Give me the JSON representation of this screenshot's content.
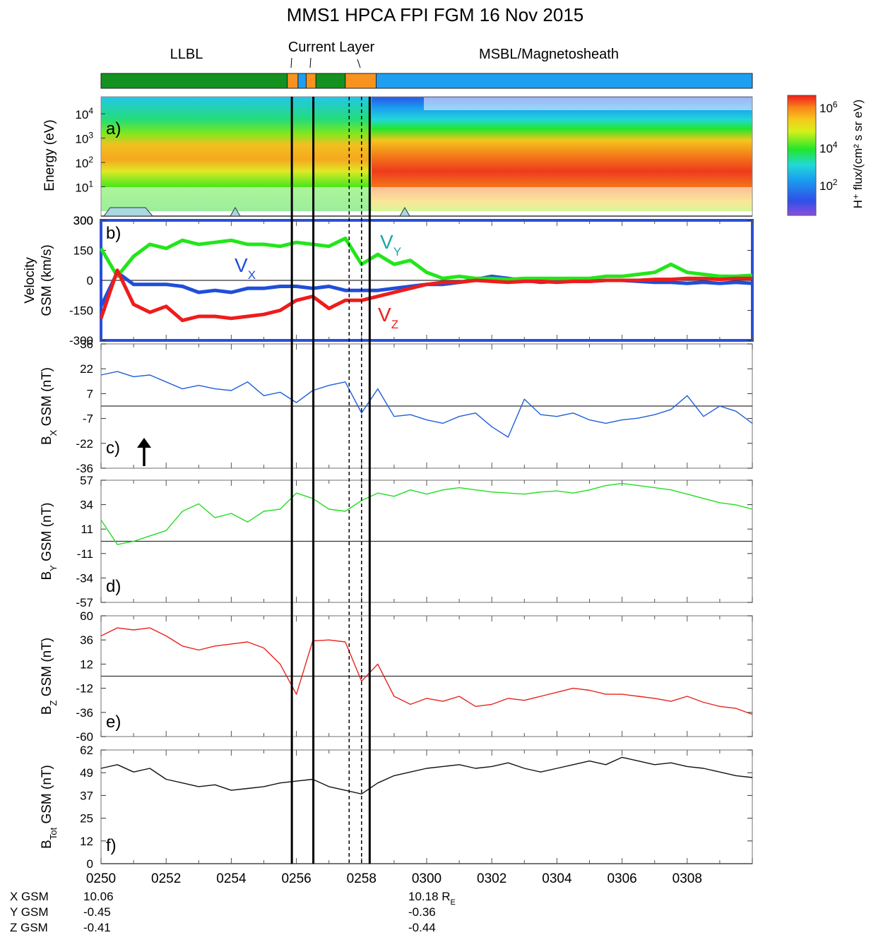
{
  "title": "MMS1 HPCA FPI FGM 16 Nov 2015",
  "regions": {
    "llbl": "LLBL",
    "current_layer": "Current Layer",
    "msbl": "MSBL/Magnetosheath"
  },
  "colors": {
    "llbl": "#13921f",
    "current_layer": "#f7931e",
    "msbl": "#1f9ff0",
    "vx": "#1f4fd8",
    "vy": "#22e61a",
    "vz": "#ee1c1c",
    "bx": "#1f5fd8",
    "by": "#22dd22",
    "bz": "#e8231d",
    "btot": "#111111",
    "velocity_frame": "#2a4fd8"
  },
  "colorbar": {
    "label": "H⁺ flux/(cm² s sr eV)",
    "ticks": [
      {
        "base": "10",
        "exp": "6"
      },
      {
        "base": "10",
        "exp": "4"
      },
      {
        "base": "10",
        "exp": "2"
      }
    ]
  },
  "x_axis": {
    "ticks": [
      "0250",
      "0252",
      "0254",
      "0256",
      "0258",
      "0300",
      "0302",
      "0304",
      "0306",
      "0308"
    ],
    "range_minutes": [
      0,
      20
    ]
  },
  "ephemeris": {
    "labels": [
      "X GSM",
      "Y GSM",
      "Z GSM"
    ],
    "start": [
      "10.06",
      "-0.45",
      "-0.41"
    ],
    "end": [
      "10.18 R",
      "-0.36",
      "-0.44"
    ],
    "end_unit_sub": "E"
  },
  "boundaries": {
    "solid": [
      5.86,
      6.52,
      8.25
    ],
    "dashed": [
      7.62,
      8.0
    ]
  },
  "bar_segments": [
    {
      "region": "llbl",
      "start": 0,
      "end": 5.72
    },
    {
      "region": "current_layer",
      "start": 5.72,
      "end": 6.05
    },
    {
      "region": "msbl",
      "start": 6.05,
      "end": 6.3
    },
    {
      "region": "current_layer",
      "start": 6.3,
      "end": 6.6
    },
    {
      "region": "llbl",
      "start": 6.6,
      "end": 7.5
    },
    {
      "region": "current_layer",
      "start": 7.5,
      "end": 8.45
    },
    {
      "region": "msbl",
      "start": 8.45,
      "end": 20
    }
  ],
  "chart_data": [
    {
      "panel": "a)",
      "type": "heatmap",
      "ylabel": "Energy (eV)",
      "yscale": "log",
      "ylim": [
        1,
        50000
      ],
      "yticks": [
        {
          "base": "10",
          "exp": "4"
        },
        {
          "base": "10",
          "exp": "3"
        },
        {
          "base": "10",
          "exp": "2"
        },
        {
          "base": "10",
          "exp": "1"
        }
      ],
      "extra_label": "300",
      "zlim": [
        10,
        3000000
      ]
    },
    {
      "panel": "b)",
      "type": "line",
      "ylabel": "Velocity GSM (km/s)",
      "ylim": [
        -300,
        300
      ],
      "yticks": [
        "300",
        "150",
        "0",
        "-150",
        "-300"
      ],
      "x_minutes": [
        0,
        0.5,
        1,
        1.5,
        2,
        2.5,
        3,
        3.5,
        4,
        4.5,
        5,
        5.5,
        6,
        6.5,
        7,
        7.5,
        8,
        8.5,
        9,
        9.5,
        10,
        10.5,
        11,
        11.5,
        12,
        12.5,
        13,
        13.5,
        14,
        14.5,
        15,
        15.5,
        16,
        16.5,
        17,
        17.5,
        18,
        18.5,
        19,
        19.5,
        20
      ],
      "series": [
        {
          "name": "V",
          "sub": "X",
          "values": [
            -130,
            40,
            -20,
            -20,
            -20,
            -30,
            -60,
            -50,
            -60,
            -40,
            -40,
            -30,
            -30,
            -40,
            -30,
            -50,
            -50,
            -50,
            -40,
            -30,
            -20,
            -20,
            -10,
            5,
            20,
            10,
            0,
            -10,
            -5,
            -5,
            -5,
            0,
            0,
            -5,
            -10,
            -10,
            -15,
            -10,
            -15,
            -10,
            -15
          ]
        },
        {
          "name": "V",
          "sub": "Y",
          "values": [
            160,
            20,
            120,
            180,
            160,
            200,
            180,
            190,
            200,
            180,
            180,
            170,
            190,
            180,
            170,
            210,
            80,
            130,
            80,
            100,
            40,
            10,
            20,
            10,
            10,
            5,
            10,
            10,
            10,
            10,
            10,
            20,
            20,
            30,
            40,
            80,
            40,
            30,
            20,
            20,
            25
          ]
        },
        {
          "name": "V",
          "sub": "Z",
          "values": [
            -190,
            50,
            -120,
            -160,
            -130,
            -200,
            -180,
            -180,
            -190,
            -180,
            -170,
            -150,
            -100,
            -80,
            -140,
            -100,
            -100,
            -80,
            -60,
            -40,
            -20,
            -10,
            -10,
            0,
            -5,
            -10,
            -5,
            -5,
            -10,
            -5,
            -5,
            0,
            0,
            0,
            5,
            5,
            10,
            10,
            5,
            10,
            10
          ]
        }
      ]
    },
    {
      "panel": "c)",
      "type": "line",
      "ylabel": "B GSM (nT)",
      "ylabel_sub": "X",
      "ylim": [
        -36,
        36
      ],
      "yticks": [
        "36",
        "22",
        "7",
        "-7",
        "-22",
        "-36"
      ],
      "x_minutes": [
        0,
        0.5,
        1,
        1.5,
        2,
        2.5,
        3,
        3.5,
        4,
        4.5,
        5,
        5.5,
        6,
        6.5,
        7,
        7.5,
        8,
        8.5,
        9,
        9.5,
        10,
        10.5,
        11,
        11.5,
        12,
        12.5,
        13,
        13.5,
        14,
        14.5,
        15,
        15.5,
        16,
        16.5,
        17,
        17.5,
        18,
        18.5,
        19,
        19.5,
        20
      ],
      "series": [
        {
          "name": "",
          "values": [
            18,
            20,
            17,
            18,
            14,
            10,
            12,
            10,
            9,
            14,
            6,
            8,
            2,
            9,
            12,
            14,
            -4,
            10,
            -6,
            -5,
            -8,
            -10,
            -6,
            -4,
            -12,
            -18,
            4,
            -5,
            -6,
            -4,
            -8,
            -10,
            -8,
            -7,
            -5,
            -2,
            6,
            -6,
            0,
            -3,
            -10
          ]
        }
      ]
    },
    {
      "panel": "d)",
      "type": "line",
      "ylabel": "B GSM (nT)",
      "ylabel_sub": "Y",
      "ylim": [
        -57,
        57
      ],
      "yticks": [
        "57",
        "34",
        "11",
        "-11",
        "-34",
        "-57"
      ],
      "x_minutes": [
        0,
        0.5,
        1,
        1.5,
        2,
        2.5,
        3,
        3.5,
        4,
        4.5,
        5,
        5.5,
        6,
        6.5,
        7,
        7.5,
        8,
        8.5,
        9,
        9.5,
        10,
        10.5,
        11,
        11.5,
        12,
        12.5,
        13,
        13.5,
        14,
        14.5,
        15,
        15.5,
        16,
        16.5,
        17,
        17.5,
        18,
        18.5,
        19,
        19.5,
        20
      ],
      "series": [
        {
          "name": "",
          "values": [
            20,
            -3,
            0,
            5,
            10,
            28,
            35,
            22,
            26,
            18,
            28,
            30,
            45,
            40,
            30,
            28,
            38,
            45,
            42,
            48,
            44,
            48,
            50,
            48,
            46,
            45,
            44,
            46,
            47,
            45,
            48,
            52,
            54,
            52,
            50,
            48,
            44,
            40,
            36,
            34,
            30
          ]
        }
      ]
    },
    {
      "panel": "e)",
      "type": "line",
      "ylabel": "B GSM (nT)",
      "ylabel_sub": "Z",
      "ylim": [
        -60,
        60
      ],
      "yticks": [
        "60",
        "36",
        "12",
        "-12",
        "-36",
        "-60"
      ],
      "x_minutes": [
        0,
        0.5,
        1,
        1.5,
        2,
        2.5,
        3,
        3.5,
        4,
        4.5,
        5,
        5.5,
        6,
        6.5,
        7,
        7.5,
        8,
        8.5,
        9,
        9.5,
        10,
        10.5,
        11,
        11.5,
        12,
        12.5,
        13,
        13.5,
        14,
        14.5,
        15,
        15.5,
        16,
        16.5,
        17,
        17.5,
        18,
        18.5,
        19,
        19.5,
        20
      ],
      "series": [
        {
          "name": "",
          "values": [
            40,
            48,
            46,
            48,
            40,
            30,
            26,
            30,
            32,
            34,
            28,
            12,
            -18,
            35,
            36,
            34,
            -5,
            12,
            -20,
            -28,
            -22,
            -25,
            -20,
            -30,
            -28,
            -22,
            -24,
            -20,
            -16,
            -12,
            -14,
            -18,
            -18,
            -20,
            -22,
            -25,
            -20,
            -26,
            -30,
            -32,
            -38
          ]
        }
      ]
    },
    {
      "panel": "f)",
      "type": "line",
      "ylabel": "GSM (nT)",
      "ylabel_prefix": "B",
      "ylabel_sub": "Tot",
      "ylim": [
        0,
        62
      ],
      "yticks": [
        "62",
        "49",
        "37",
        "25",
        "12",
        "0"
      ],
      "x_minutes": [
        0,
        0.5,
        1,
        1.5,
        2,
        2.5,
        3,
        3.5,
        4,
        4.5,
        5,
        5.5,
        6,
        6.5,
        7,
        7.5,
        8,
        8.5,
        9,
        9.5,
        10,
        10.5,
        11,
        11.5,
        12,
        12.5,
        13,
        13.5,
        14,
        14.5,
        15,
        15.5,
        16,
        16.5,
        17,
        17.5,
        18,
        18.5,
        19,
        19.5,
        20
      ],
      "series": [
        {
          "name": "",
          "values": [
            52,
            54,
            50,
            52,
            46,
            44,
            42,
            43,
            40,
            41,
            42,
            44,
            45,
            46,
            42,
            40,
            38,
            44,
            48,
            50,
            52,
            53,
            54,
            52,
            53,
            55,
            52,
            50,
            52,
            54,
            56,
            54,
            58,
            56,
            54,
            55,
            53,
            52,
            50,
            48,
            47
          ]
        }
      ]
    }
  ]
}
